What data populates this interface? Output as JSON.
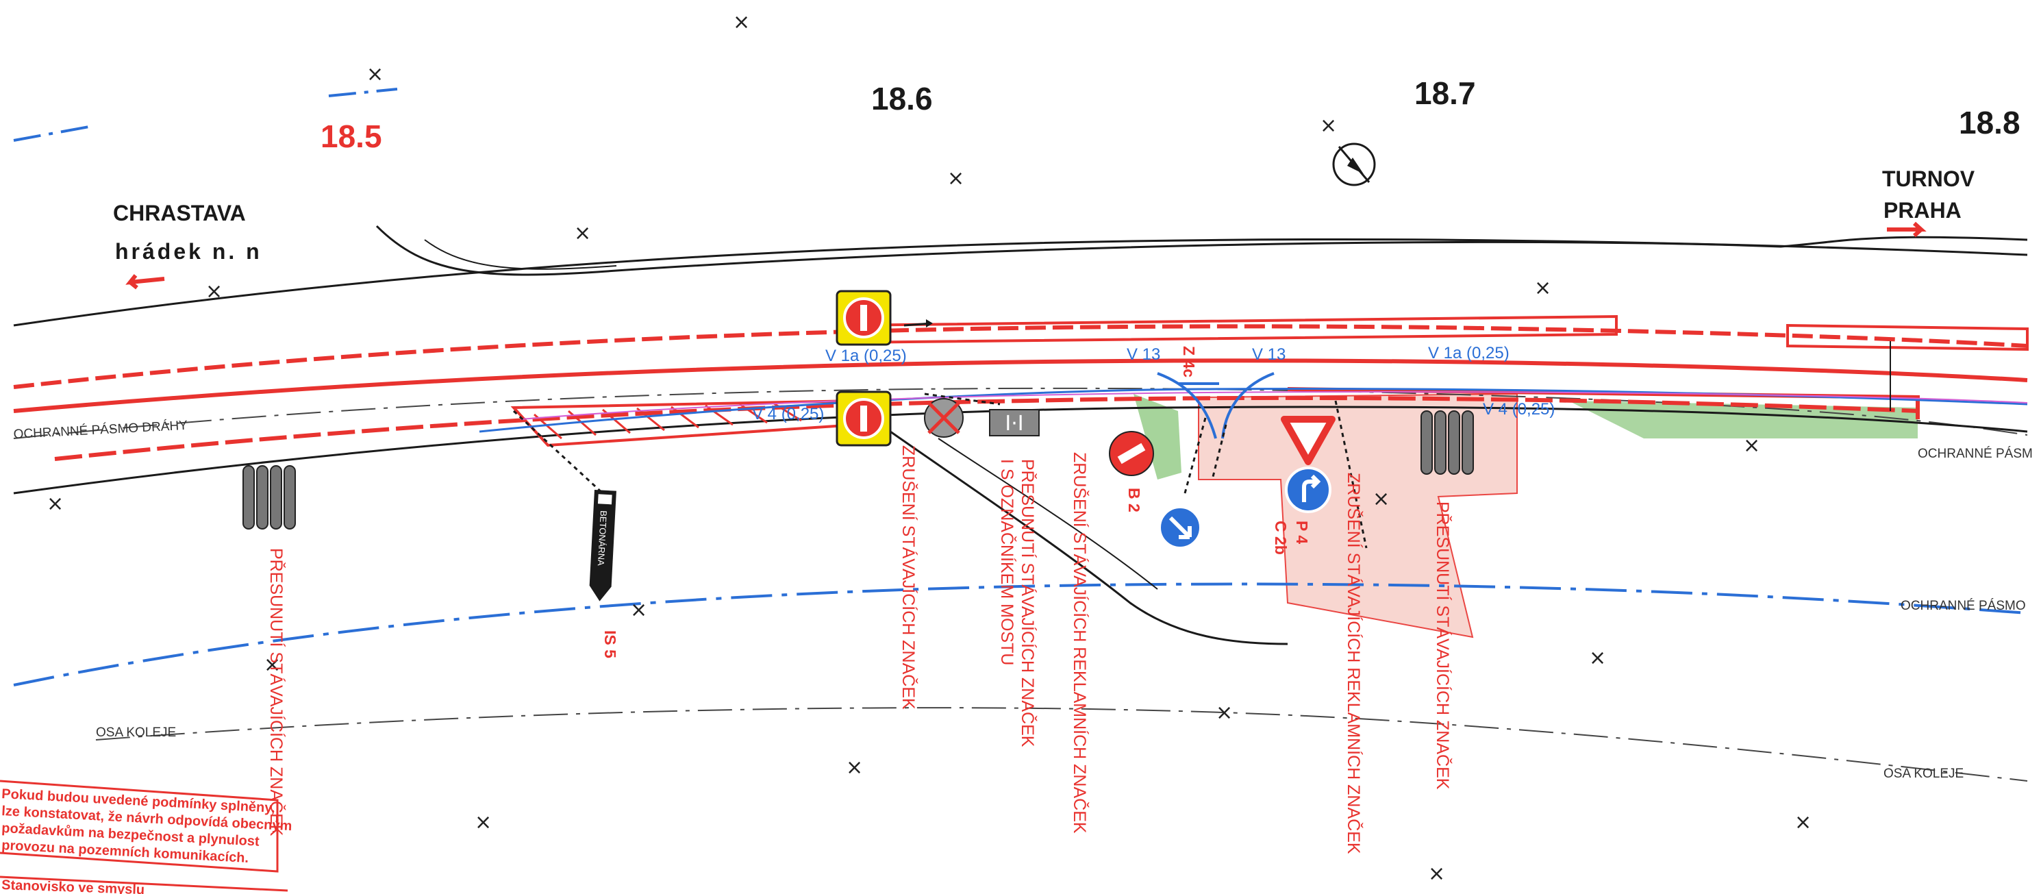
{
  "km_markers": [
    "18.5",
    "18.6",
    "18.7",
    "18.8"
  ],
  "directions": {
    "left_line1": "CHRASTAVA",
    "left_line2": "hrádek n. n",
    "right_line1": "TURNOV",
    "right_line2": "PRAHA"
  },
  "zones": {
    "protection_left": "OCHRANNÉ PÁSMO DRÁHY",
    "protection_right_top": "OCHRANNÉ PÁSM",
    "protection_right_bottom": "OCHRANNÉ PÁSMO",
    "axis_left": "OSA KOLEJE",
    "axis_right": "OSA KOLEJE"
  },
  "markings": {
    "v1a_left": "V 1a (0,25)",
    "v1a_right": "V 1a (0,25)",
    "v4_left": "V 4 (0,25)",
    "v4_right": "V 4 (0,25)",
    "v13_left": "V 13",
    "v13_right": "V 13",
    "z4c": "Z 4c"
  },
  "signs": {
    "b2": "B 2",
    "p4": "P 4",
    "c2b": "C 2b",
    "is5": "IS 5",
    "betonarna": "BETONÁRNA"
  },
  "notes": {
    "move_1": "PŘESUNUTÍ STÁVAJÍCÍCH ZNAČEK",
    "cancel_1": "ZRUŠENÍ STÁVAJÍCÍCH ZNAČEK",
    "move_bridge_a": "PŘESUNUTÍ STÁVAJÍCÍCH ZNAČEK",
    "move_bridge_b": "I S OZNAČNÍKEM MOSTU",
    "cancel_ads_1": "ZRUŠENÍ STÁVAJÍCÍCH REKLAMNÍCH ZNAČEK",
    "cancel_ads_2": "ZRUŠENÍ STÁVAJÍCÍCH REKLAMNÍCH ZNAČEK",
    "move_2": "PŘESUNUTÍ STÁVAJÍCÍCH ZNAČEK"
  },
  "stamp": {
    "line1": "Pokud budou uvedené podmínky splněny,",
    "line2": "lze konstatovat, že návrh odpovídá obecným",
    "line3": "požadavkům na bezpečnost a plynulost",
    "line4": "provozu na pozemních komunikacích.",
    "line5": "Stanovisko ve smyslu"
  },
  "colors": {
    "red": "#e8332f",
    "blue": "#2b6fd6",
    "dark": "#1a1a1a",
    "green_area": "#9ccf90",
    "pink_area": "#f8d2cc",
    "yellow_sign": "#f4e400"
  }
}
